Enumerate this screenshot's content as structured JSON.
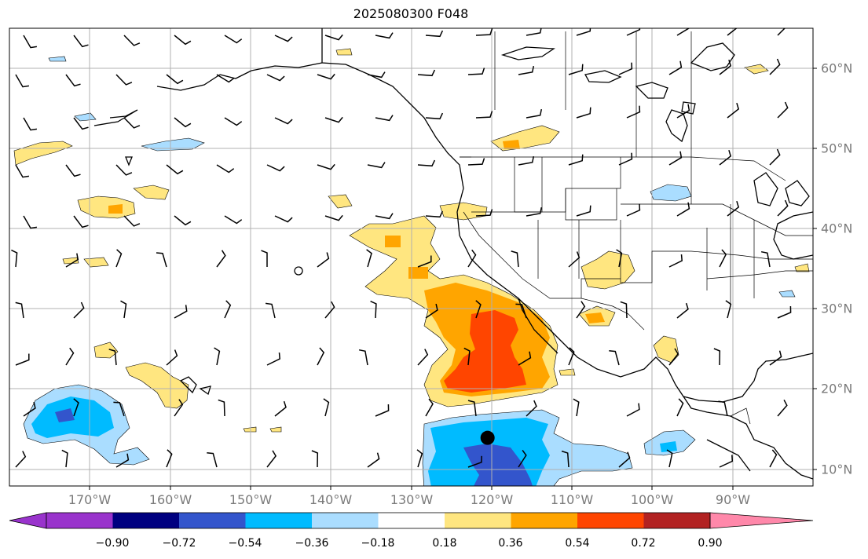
{
  "title": "2025080300 F048",
  "lat_labels": [
    "60°N",
    "50°N",
    "40°N",
    "30°N",
    "20°N",
    "10°N"
  ],
  "lon_labels": [
    "170°W",
    "160°W",
    "150°W",
    "140°W",
    "130°W",
    "120°W",
    "110°W",
    "100°W",
    "90°W"
  ],
  "colorbar": {
    "ticks": [
      "−0.90",
      "−0.72",
      "−0.54",
      "−0.36",
      "−0.18",
      "0.18",
      "0.36",
      "0.54",
      "0.72",
      "0.90"
    ],
    "colors": [
      "#9933cc",
      "#000080",
      "#3355cc",
      "#00bbff",
      "#aaddff",
      "#ffffff",
      "#ffe680",
      "#ffa500",
      "#ff4500",
      "#b22222",
      "#ff88aa"
    ]
  },
  "map": {
    "projection": "equirectangular",
    "lon_range": [
      -180,
      -80
    ],
    "lat_range": [
      8,
      65
    ],
    "gridlines": true,
    "storm_marker": {
      "lon": -120.5,
      "lat": 14
    }
  }
}
